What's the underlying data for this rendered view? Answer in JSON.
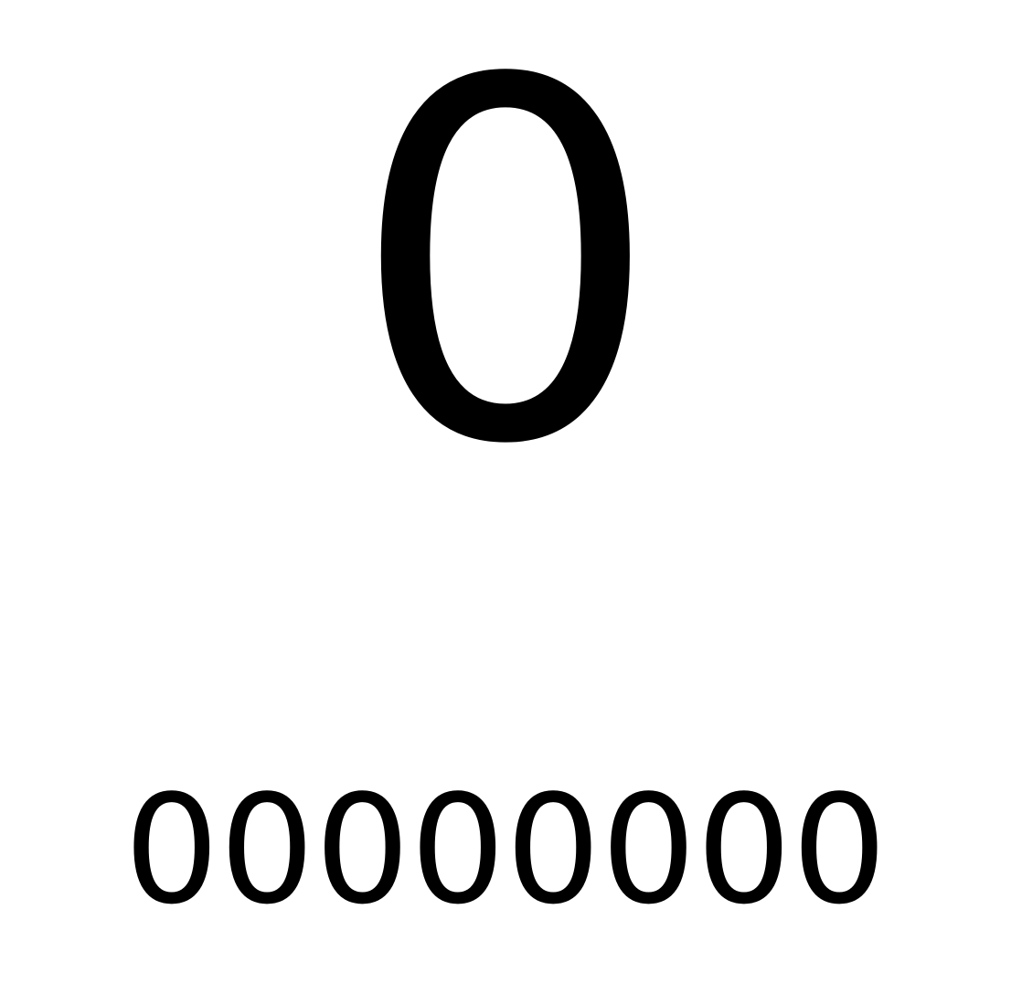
{
  "display": {
    "main_value": "0",
    "sub_value": "00000000"
  },
  "colors": {
    "background": "#ffffff",
    "text": "#000000"
  }
}
